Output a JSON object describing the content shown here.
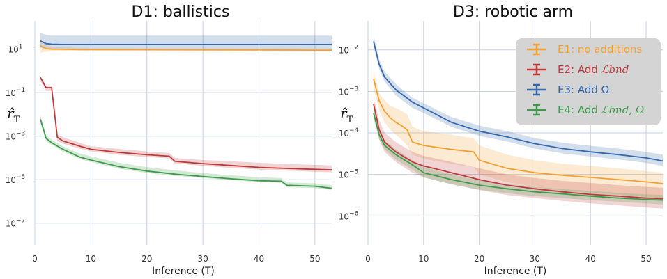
{
  "chart_data": [
    {
      "type": "line",
      "title": "D1: ballistics",
      "xlabel": "Inference (T)",
      "ylabel": "r̂",
      "ylabel_sub": "T",
      "yscale": "log",
      "xlim": [
        0,
        53
      ],
      "ylim": [
        1e-08,
        200
      ],
      "xticks": [
        "0",
        "10",
        "20",
        "30",
        "40",
        "50"
      ],
      "yticks": [
        {
          "base": "10",
          "exp": "1",
          "value": 10
        },
        {
          "base": "10",
          "exp": "−1",
          "value": 0.1
        },
        {
          "base": "10",
          "exp": "−3",
          "value": 0.001
        },
        {
          "base": "10",
          "exp": "−5",
          "value": 1e-05
        },
        {
          "base": "10",
          "exp": "−7",
          "value": 1e-07
        }
      ],
      "grid": true,
      "series": [
        {
          "name": "E1: no additions",
          "color": "#f5a030",
          "x": [
            1,
            2,
            3,
            5,
            8,
            10,
            20,
            30,
            40,
            50,
            53
          ],
          "y": [
            14,
            10.5,
            10,
            9.8,
            9.5,
            9.5,
            9.4,
            9.3,
            9.2,
            9.0,
            9.0
          ],
          "lo": [
            7,
            7.5,
            7.8,
            8,
            8.2,
            8.3,
            8.3,
            8.3,
            8.2,
            8.1,
            8.1
          ],
          "hi": [
            25,
            15,
            13,
            12,
            11.5,
            11,
            11,
            11,
            11,
            11,
            11
          ]
        },
        {
          "name": "E2: Add ℒbnd",
          "color": "#c0393b",
          "x": [
            1,
            2,
            3,
            4,
            5,
            8,
            10,
            15,
            20,
            24,
            25,
            30,
            35,
            40,
            45,
            50,
            53
          ],
          "y": [
            0.5,
            0.17,
            0.17,
            0.0009,
            0.0006,
            0.00035,
            0.00025,
            0.00018,
            0.00014,
            0.00012,
            7e-05,
            5.5e-05,
            4.5e-05,
            3.7e-05,
            3.3e-05,
            3e-05,
            2.8e-05
          ],
          "lo": [
            0.35,
            0.12,
            0.12,
            0.0006,
            0.00045,
            0.00027,
            0.0002,
            0.00014,
            0.00011,
            9.5e-05,
            5.5e-05,
            4.3e-05,
            3.5e-05,
            2.9e-05,
            2.6e-05,
            2.3e-05,
            2.2e-05
          ],
          "hi": [
            0.6,
            0.2,
            0.2,
            0.0012,
            0.0009,
            0.0005,
            0.00035,
            0.00026,
            0.0002,
            0.00017,
            0.0001,
            8e-05,
            7e-05,
            6e-05,
            5.2e-05,
            4.8e-05,
            4.5e-05
          ]
        },
        {
          "name": "E3: Add Ω",
          "color": "#3568ac",
          "x": [
            1,
            2,
            3,
            5,
            10,
            20,
            30,
            40,
            50,
            53
          ],
          "y": [
            24,
            18,
            17,
            16.5,
            16.5,
            16.5,
            16.5,
            16.5,
            16.5,
            16.5
          ],
          "lo": [
            12,
            10.5,
            10.5,
            10.5,
            10.5,
            10.5,
            10.5,
            10.5,
            10.5,
            10.5
          ],
          "hi": [
            55,
            45,
            42,
            42,
            42,
            42,
            42,
            42,
            42,
            42
          ]
        },
        {
          "name": "E4: Add ℒbnd, Ω",
          "color": "#3f9b4b",
          "x": [
            1,
            2,
            3,
            5,
            8,
            10,
            15,
            20,
            25,
            30,
            35,
            40,
            44,
            45,
            50,
            53
          ],
          "y": [
            0.006,
            0.0008,
            0.0005,
            0.00025,
            0.00011,
            8e-05,
            4e-05,
            2.5e-05,
            1.8e-05,
            1.4e-05,
            1.1e-05,
            9e-06,
            8.5e-06,
            5.5e-06,
            5e-06,
            4e-06
          ],
          "lo": [
            0.004,
            0.0006,
            0.0004,
            0.0002,
            9e-05,
            6.5e-05,
            3.2e-05,
            2e-05,
            1.5e-05,
            1.2e-05,
            9.5e-06,
            7.8e-06,
            7.2e-06,
            4.5e-06,
            4.1e-06,
            3.4e-06
          ],
          "hi": [
            0.009,
            0.0011,
            0.0007,
            0.00035,
            0.00016,
            0.00012,
            6e-05,
            3.8e-05,
            2.7e-05,
            2e-05,
            1.6e-05,
            1.3e-05,
            1.2e-05,
            7.5e-06,
            6.8e-06,
            5.6e-06
          ]
        }
      ]
    },
    {
      "type": "line",
      "title": "D3: robotic arm",
      "xlabel": "Inference (T)",
      "ylabel": "r̂",
      "ylabel_sub": "T",
      "yscale": "log",
      "xlim": [
        0,
        53
      ],
      "ylim": [
        2e-07,
        0.05
      ],
      "xticks": [
        "0",
        "10",
        "20",
        "30",
        "40",
        "50"
      ],
      "yticks": [
        {
          "base": "10",
          "exp": "−2",
          "value": 0.01
        },
        {
          "base": "10",
          "exp": "−3",
          "value": 0.001
        },
        {
          "base": "10",
          "exp": "−4",
          "value": 0.0001
        },
        {
          "base": "10",
          "exp": "−5",
          "value": 1e-05
        },
        {
          "base": "10",
          "exp": "−6",
          "value": 1e-06
        }
      ],
      "grid": true,
      "legend": "top-right",
      "series": [
        {
          "name": "E1: no additions",
          "color": "#f5a030",
          "x": [
            1,
            2,
            3,
            4,
            5,
            6,
            7,
            8,
            10,
            15,
            19,
            20,
            25,
            30,
            35,
            40,
            45,
            50,
            53
          ],
          "y": [
            0.002,
            0.0006,
            0.00033,
            0.00023,
            0.00018,
            0.00015,
            0.00012,
            6e-05,
            5e-05,
            4e-05,
            3.5e-05,
            2.2e-05,
            1.4e-05,
            1.1e-05,
            9.5e-06,
            8.5e-06,
            7.5e-06,
            6.6e-06,
            6e-06
          ],
          "lo": [
            0.0012,
            0.00035,
            0.00018,
            0.00012,
            9e-05,
            7e-05,
            5e-05,
            3e-05,
            2.4e-05,
            1.8e-05,
            1.5e-05,
            1e-05,
            6.5e-06,
            5e-06,
            4.2e-06,
            3.7e-06,
            3.3e-06,
            2.9e-06,
            2.7e-06
          ],
          "hi": [
            0.003,
            0.0009,
            0.0006,
            0.00045,
            0.0004,
            0.00034,
            0.00028,
            0.00014,
            0.00011,
            9e-05,
            7.5e-05,
            5e-05,
            3e-05,
            2.2e-05,
            1.8e-05,
            1.6e-05,
            1.4e-05,
            1.2e-05,
            1.1e-05
          ]
        },
        {
          "name": "E2: Add ℒbnd",
          "color": "#c0393b",
          "x": [
            1,
            2,
            3,
            5,
            8,
            10,
            15,
            20,
            25,
            30,
            35,
            40,
            45,
            50,
            53
          ],
          "y": [
            0.0005,
            0.00012,
            6e-05,
            3.5e-05,
            2e-05,
            1.6e-05,
            1.1e-05,
            7.5e-06,
            5.5e-06,
            4.5e-06,
            3.8e-06,
            3.3e-06,
            3e-06,
            2.7e-06,
            2.6e-06
          ],
          "lo": [
            0.0003,
            7e-05,
            3.5e-05,
            2e-05,
            1.1e-05,
            8.5e-06,
            5.8e-06,
            4.2e-06,
            3.2e-06,
            2.7e-06,
            2.3e-06,
            2e-06,
            1.8e-06,
            1.6e-06,
            1.5e-06
          ],
          "hi": [
            0.0007,
            0.0002,
            0.0001,
            6e-05,
            3.5e-05,
            2.8e-05,
            2e-05,
            1.4e-05,
            1e-05,
            8.2e-06,
            7e-06,
            6.2e-06,
            5.5e-06,
            5e-06,
            4.8e-06
          ]
        },
        {
          "name": "E3: Add Ω",
          "color": "#3568ac",
          "x": [
            1,
            2,
            3,
            5,
            8,
            10,
            15,
            20,
            25,
            30,
            35,
            40,
            45,
            50,
            53
          ],
          "y": [
            0.016,
            0.0045,
            0.0022,
            0.0011,
            0.00055,
            0.0004,
            0.00018,
            0.00011,
            8e-05,
            5.5e-05,
            4.2e-05,
            3.5e-05,
            3e-05,
            2.5e-05,
            2.1e-05
          ],
          "lo": [
            0.012,
            0.0035,
            0.0017,
            0.0008,
            0.0004,
            0.0003,
            0.00014,
            8.5e-05,
            6.2e-05,
            4.2e-05,
            3.2e-05,
            2.7e-05,
            2.3e-05,
            1.9e-05,
            1.6e-05
          ],
          "hi": [
            0.022,
            0.006,
            0.003,
            0.0015,
            0.0007,
            0.00052,
            0.00024,
            0.00015,
            0.00011,
            7.5e-05,
            5.8e-05,
            4.9e-05,
            4.2e-05,
            3.5e-05,
            3e-05
          ]
        },
        {
          "name": "E4: Add ℒbnd, Ω",
          "color": "#3f9b4b",
          "x": [
            1,
            2,
            3,
            5,
            8,
            10,
            15,
            20,
            25,
            30,
            35,
            40,
            45,
            50,
            53
          ],
          "y": [
            0.0003,
            9e-05,
            5e-05,
            3e-05,
            1.7e-05,
            1.1e-05,
            7.5e-06,
            5.5e-06,
            4.5e-06,
            3.8e-06,
            3.4e-06,
            3e-06,
            2.7e-06,
            2.5e-06,
            2.4e-06
          ],
          "lo": [
            0.00022,
            7e-05,
            4e-05,
            2.3e-05,
            1.3e-05,
            8.5e-06,
            5.8e-06,
            4.3e-06,
            3.5e-06,
            3e-06,
            2.7e-06,
            2.4e-06,
            2.2e-06,
            2e-06,
            1.9e-06
          ],
          "hi": [
            0.0004,
            0.00012,
            6.5e-05,
            4e-05,
            2.2e-05,
            1.5e-05,
            1e-05,
            7.2e-06,
            5.9e-06,
            5e-06,
            4.4e-06,
            4e-06,
            3.6e-06,
            3.3e-06,
            3.2e-06
          ]
        }
      ]
    }
  ],
  "legend": {
    "items": [
      {
        "text": "E1: no additions",
        "color": "#f5a030",
        "math": ""
      },
      {
        "text": "E2: Add ",
        "color": "#c0393b",
        "math": "ℒbnd"
      },
      {
        "text": "E3: Add Ω",
        "color": "#3568ac",
        "math": ""
      },
      {
        "text": "E4: Add ",
        "color": "#3f9b4b",
        "math": "ℒbnd, Ω"
      }
    ]
  }
}
